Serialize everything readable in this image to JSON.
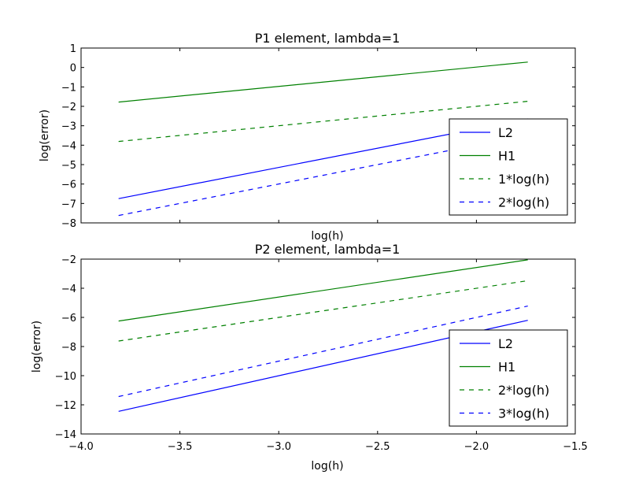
{
  "chart_data": [
    {
      "type": "line",
      "title": "P1 element, lambda=1",
      "xlabel": "log(h)",
      "ylabel": "log(error)",
      "xlim": [
        -4.0,
        -1.5
      ],
      "ylim": [
        -8,
        1
      ],
      "xticks": [],
      "yticks": [
        "1",
        "0",
        "−1",
        "−2",
        "−3",
        "−4",
        "−5",
        "−6",
        "−7",
        "−8"
      ],
      "ytick_values": [
        1,
        0,
        -1,
        -2,
        -3,
        -4,
        -5,
        -6,
        -7,
        -8
      ],
      "xtick_marks": [
        -4.0,
        -3.5,
        -3.0,
        -2.5,
        -2.0,
        -1.5
      ],
      "legend_position": "lower-right",
      "series": [
        {
          "name": "L2",
          "color": "#0000ff",
          "style": "solid",
          "x": [
            -3.81,
            -1.74
          ],
          "y": [
            -6.75,
            -2.65
          ]
        },
        {
          "name": "H1",
          "color": "#008000",
          "style": "solid",
          "x": [
            -3.81,
            -1.74
          ],
          "y": [
            -1.78,
            0.28
          ]
        },
        {
          "name": "1*log(h)",
          "color": "#008000",
          "style": "dashed",
          "x": [
            -3.81,
            -1.74
          ],
          "y": [
            -3.81,
            -1.74
          ]
        },
        {
          "name": "2*log(h)",
          "color": "#0000ff",
          "style": "dashed",
          "x": [
            -3.81,
            -1.74
          ],
          "y": [
            -7.62,
            -3.48
          ]
        }
      ]
    },
    {
      "type": "line",
      "title": "P2 element, lambda=1",
      "xlabel": "log(h)",
      "ylabel": "log(error)",
      "xlim": [
        -4.0,
        -1.5
      ],
      "ylim": [
        -14,
        -2
      ],
      "xticks": [
        "−4.0",
        "−3.5",
        "−3.0",
        "−2.5",
        "−2.0",
        "−1.5"
      ],
      "xtick_values": [
        -4.0,
        -3.5,
        -3.0,
        -2.5,
        -2.0,
        -1.5
      ],
      "yticks": [
        "−2",
        "−4",
        "−6",
        "−8",
        "−10",
        "−12",
        "−14"
      ],
      "ytick_values": [
        -2,
        -4,
        -6,
        -8,
        -10,
        -12,
        -14
      ],
      "legend_position": "lower-right",
      "series": [
        {
          "name": "L2",
          "color": "#0000ff",
          "style": "solid",
          "x": [
            -3.81,
            -1.74
          ],
          "y": [
            -12.45,
            -6.2
          ]
        },
        {
          "name": "H1",
          "color": "#008000",
          "style": "solid",
          "x": [
            -3.81,
            -1.74
          ],
          "y": [
            -6.25,
            -2.05
          ]
        },
        {
          "name": "2*log(h)",
          "color": "#008000",
          "style": "dashed",
          "x": [
            -3.81,
            -1.74
          ],
          "y": [
            -7.62,
            -3.48
          ]
        },
        {
          "name": "3*log(h)",
          "color": "#0000ff",
          "style": "dashed",
          "x": [
            -3.81,
            -1.74
          ],
          "y": [
            -11.43,
            -5.22
          ]
        }
      ]
    }
  ]
}
